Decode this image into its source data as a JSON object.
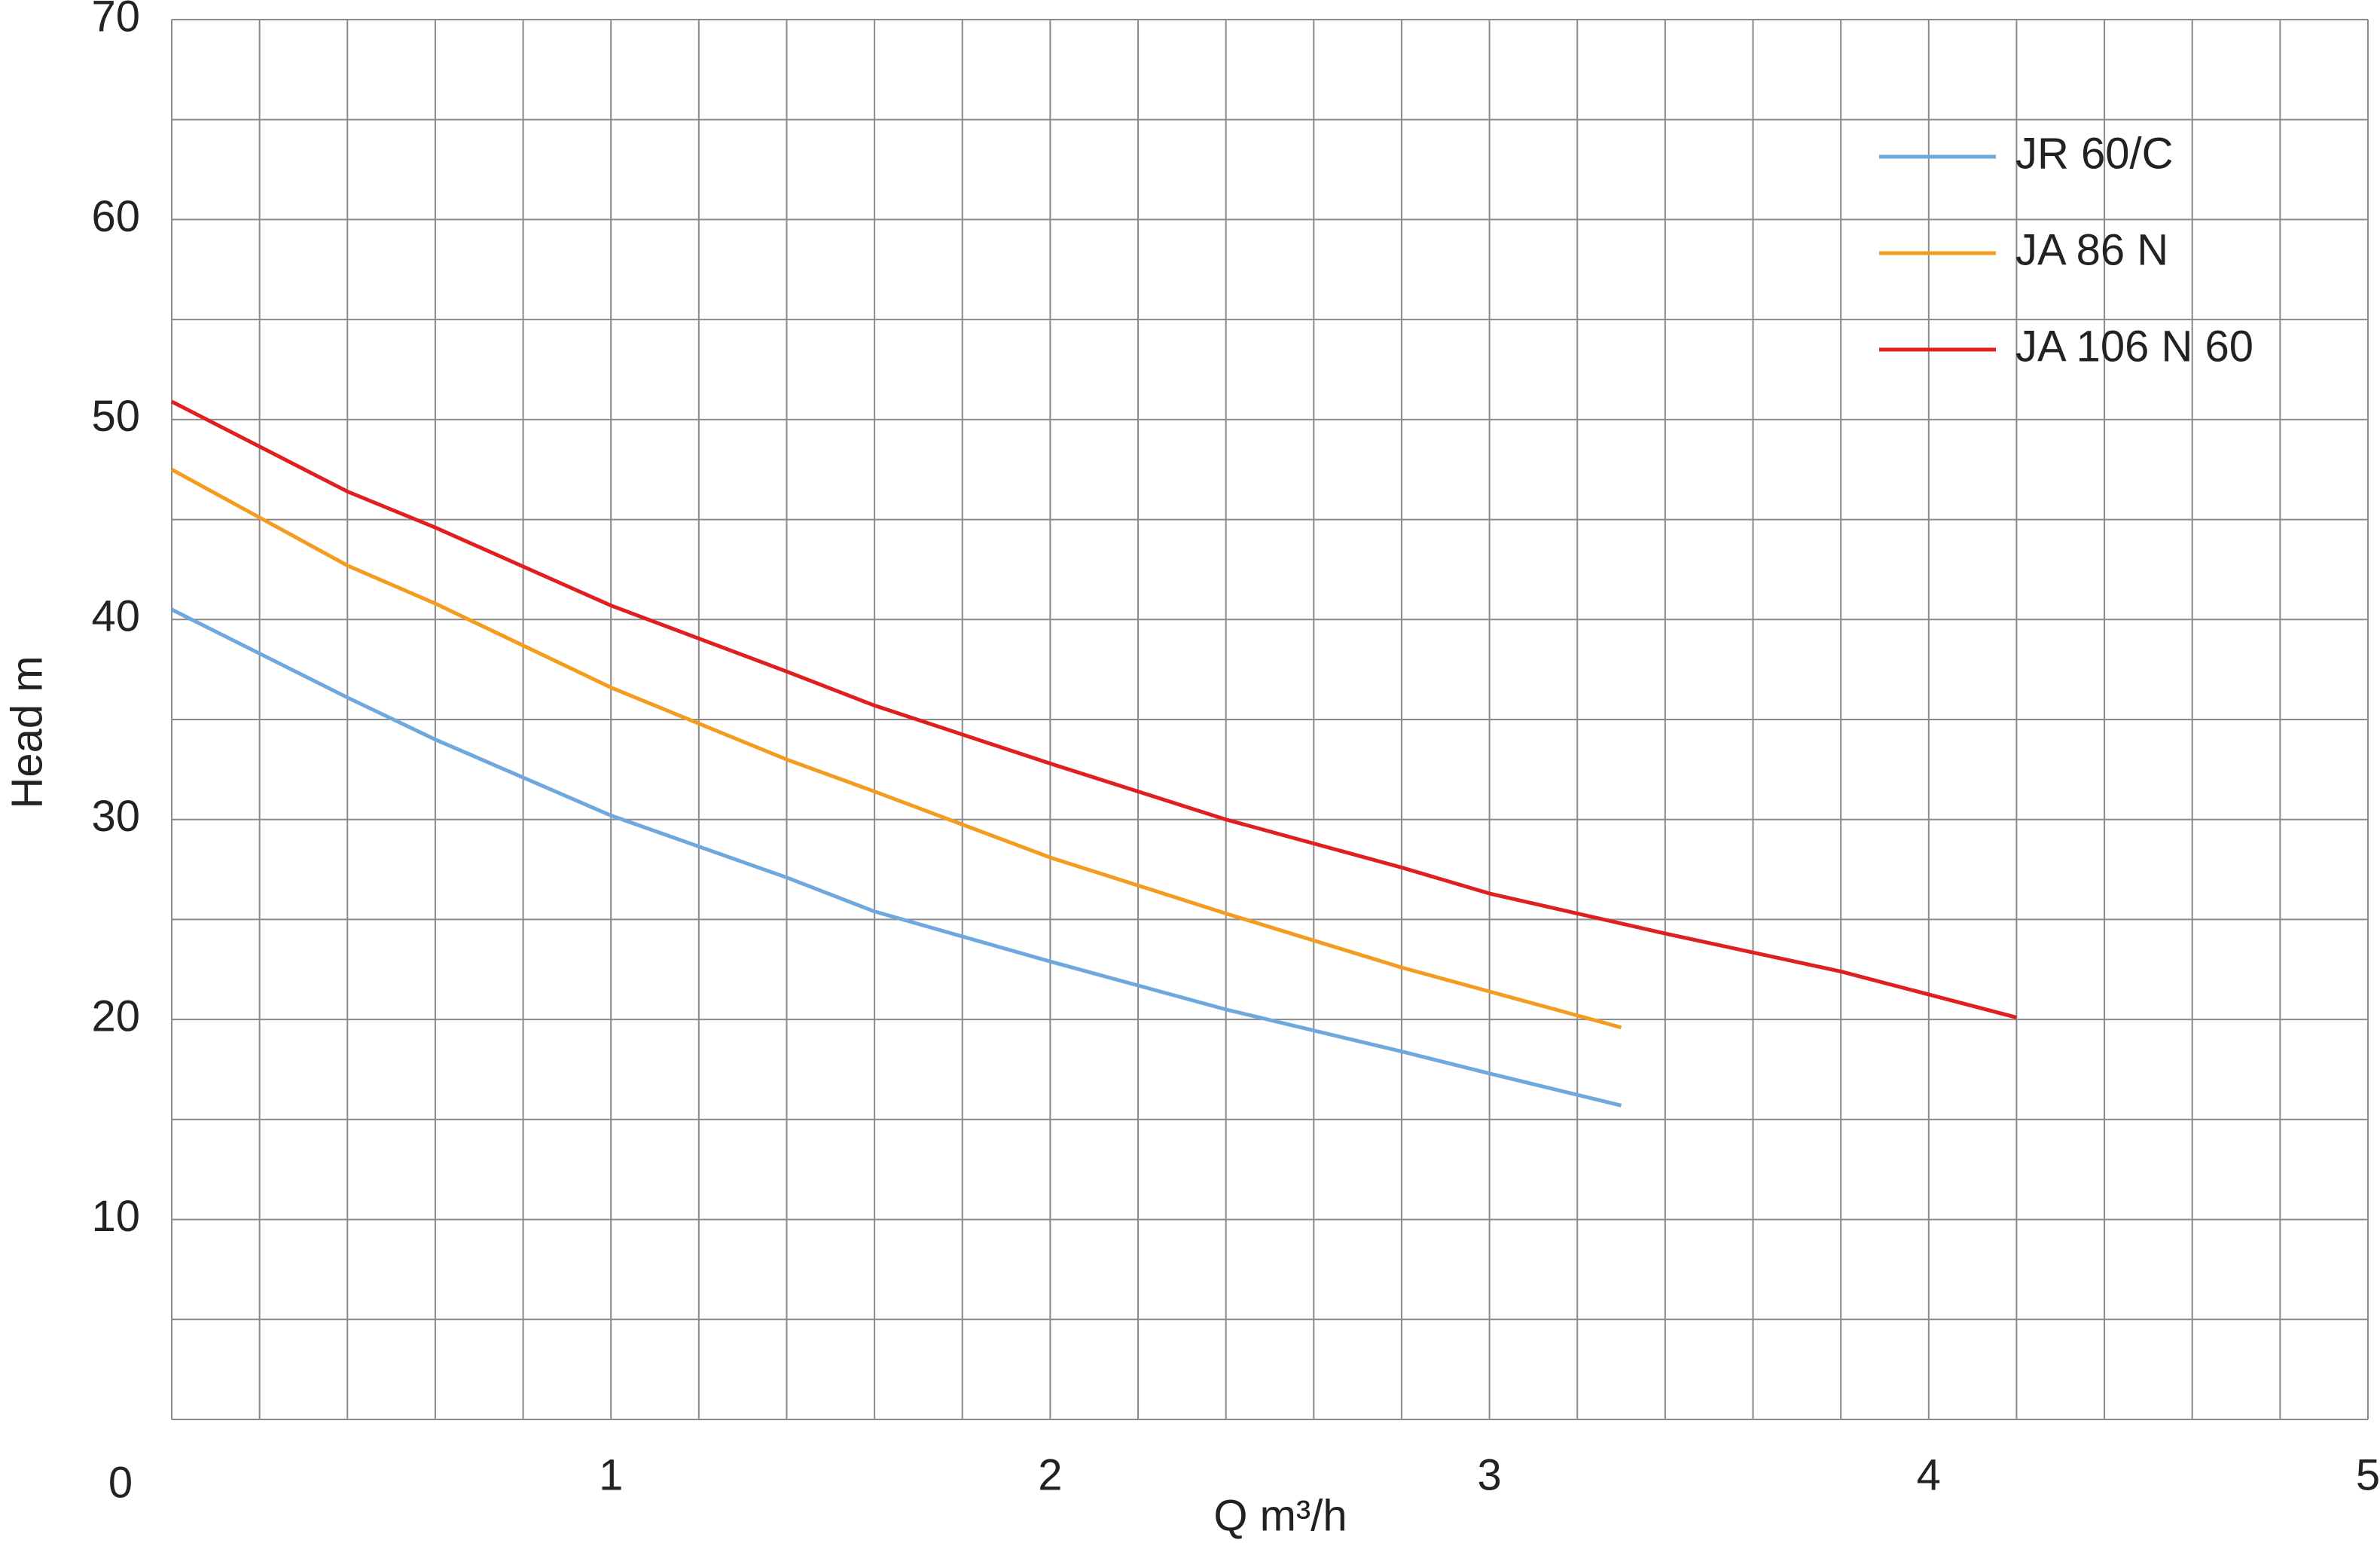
{
  "chart_data": {
    "type": "line",
    "x_label": "Q m³/h",
    "y_label": "Head m",
    "xlim": [
      0,
      5
    ],
    "xticks": [
      0,
      1,
      2,
      3,
      4,
      5
    ],
    "ylim": [
      0,
      70
    ],
    "yticks": [
      10,
      20,
      30,
      40,
      50,
      60,
      70
    ],
    "grid": true,
    "legend": "upper right",
    "series": [
      {
        "name": "JR 60/C",
        "color": "#6fa8dc",
        "x": [
          0,
          0.4,
          0.6,
          1.0,
          1.4,
          1.6,
          2.0,
          2.4,
          2.8,
          3.0,
          3.3
        ],
        "values": [
          40.5,
          36.1,
          34.0,
          30.2,
          27.1,
          25.4,
          22.9,
          20.5,
          18.4,
          17.3,
          15.7
        ]
      },
      {
        "name": "JA 86 N",
        "color": "#f39c1f",
        "x": [
          0,
          0.4,
          0.6,
          1.0,
          1.4,
          1.6,
          2.0,
          2.4,
          2.8,
          3.0,
          3.3
        ],
        "values": [
          47.5,
          42.7,
          40.8,
          36.6,
          33.0,
          31.4,
          28.1,
          25.3,
          22.6,
          21.4,
          19.6
        ]
      },
      {
        "name": "JA 106 N 60",
        "color": "#e02020",
        "x": [
          0,
          0.4,
          0.6,
          1.0,
          1.4,
          1.6,
          2.0,
          2.4,
          2.8,
          3.0,
          3.4,
          3.8,
          4.2
        ],
        "values": [
          50.9,
          46.4,
          44.6,
          40.7,
          37.4,
          35.7,
          32.8,
          30.0,
          27.6,
          26.3,
          24.3,
          22.4,
          20.1
        ]
      }
    ]
  }
}
